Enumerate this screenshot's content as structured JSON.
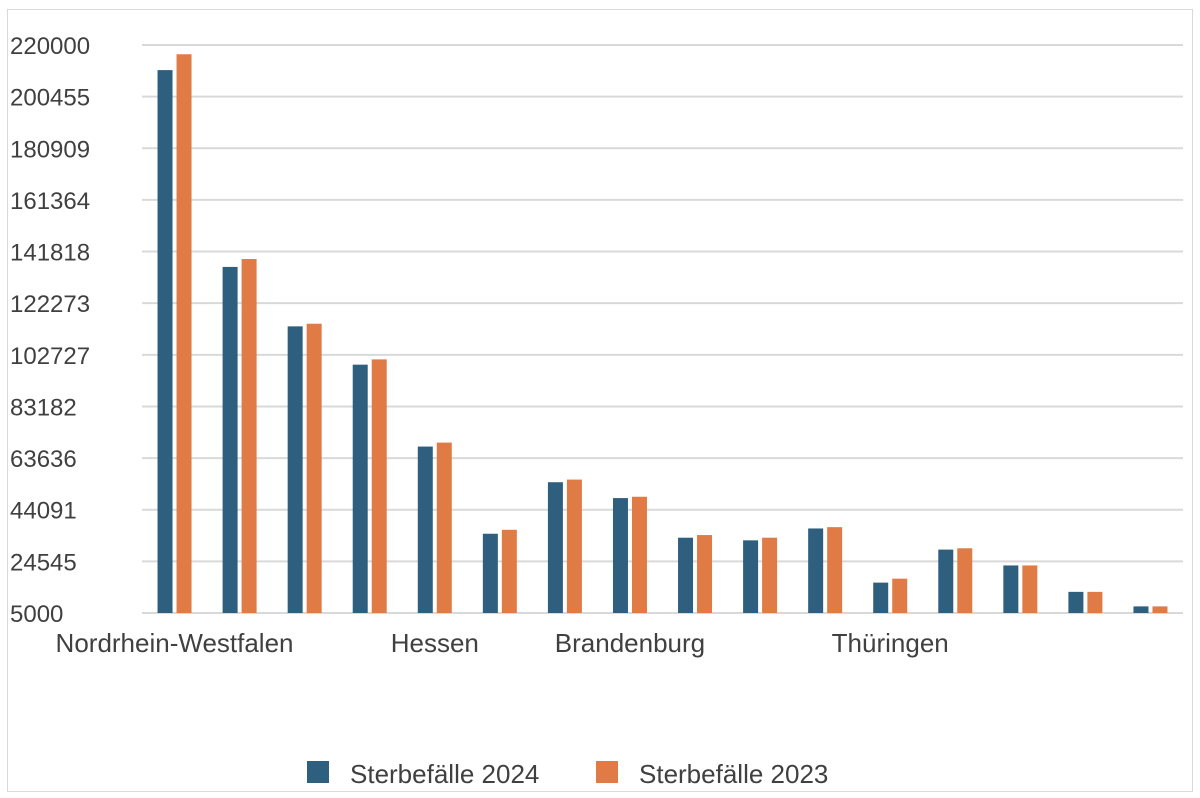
{
  "chart_data": {
    "type": "bar",
    "categories": [
      "Nordrhein-Westfalen",
      "",
      "",
      "",
      "Hessen",
      "",
      "",
      "Brandenburg",
      "",
      "",
      "",
      "Thüringen",
      "",
      "",
      "",
      ""
    ],
    "series": [
      {
        "name": "Sterbefälle 2024",
        "color": "#2e5f7f",
        "values": [
          210500,
          136000,
          113500,
          99000,
          68000,
          35000,
          54500,
          48500,
          33500,
          32500,
          37000,
          16500,
          29000,
          23000,
          13000,
          7500
        ]
      },
      {
        "name": "Sterbefälle 2023",
        "color": "#e07b46",
        "values": [
          216500,
          139000,
          114500,
          101000,
          69500,
          36500,
          55500,
          49000,
          34500,
          33500,
          37500,
          18000,
          29500,
          23000,
          13000,
          7500
        ]
      }
    ],
    "yticks": [
      "220000",
      "200455",
      "180909",
      "161364",
      "141818",
      "122273",
      "102727",
      "83182",
      "63636",
      "44091",
      "24545",
      "5000"
    ],
    "ylim": [
      5000,
      220000
    ],
    "grid": true,
    "legend": "bottom",
    "title": "",
    "xlabel": "",
    "ylabel": ""
  }
}
